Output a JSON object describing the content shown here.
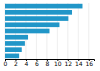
{
  "chart_data": {
    "type": "bar",
    "orientation": "horizontal",
    "categories": [
      null,
      null,
      null,
      null,
      null,
      null,
      null,
      null,
      null
    ],
    "values": [
      14.8,
      12.8,
      12.1,
      10.4,
      8.5,
      4.4,
      3.8,
      3.2,
      2.7
    ],
    "color": "#2196c8",
    "xlim": [
      0,
      17
    ],
    "xticks": [
      0,
      2,
      4,
      6,
      8,
      10,
      12,
      14,
      16
    ],
    "grid": true,
    "tick_labels": "x"
  }
}
